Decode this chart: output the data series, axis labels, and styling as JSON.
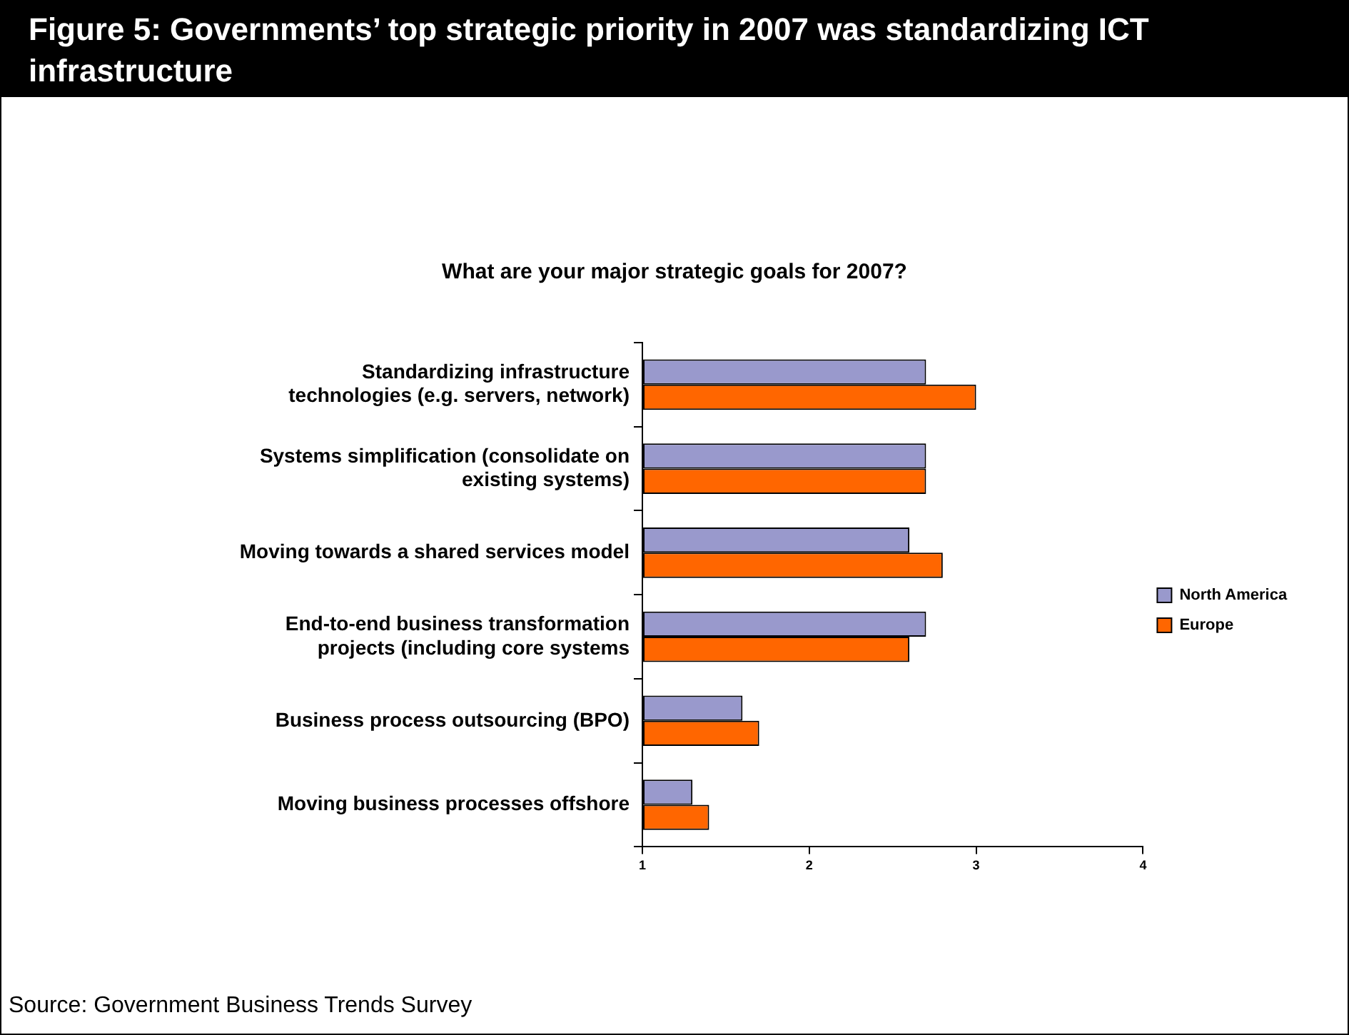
{
  "chart_data": {
    "type": "bar",
    "orientation": "horizontal",
    "title": "Figure 5: Governments’ top strategic priority in 2007 was standardizing ICT infrastructure",
    "subtitle": "What are your major strategic goals for 2007?",
    "categories": [
      "Standardizing infrastructure technologies (e.g. servers, network)",
      "Systems simplification (consolidate on existing systems)",
      "Moving towards a shared services model",
      "End-to-end business transformation projects (including core systems",
      "Business process outsourcing (BPO)",
      "Moving business processes offshore"
    ],
    "series": [
      {
        "name": "North America",
        "color": "#9999cc",
        "values": [
          2.7,
          2.7,
          2.6,
          2.7,
          1.6,
          1.3
        ]
      },
      {
        "name": "Europe",
        "color": "#ff6600",
        "values": [
          3.0,
          2.7,
          2.8,
          2.6,
          1.7,
          1.4
        ]
      }
    ],
    "xlim": [
      1,
      4
    ],
    "xticks": [
      1,
      2,
      3,
      4
    ],
    "grid": false,
    "legend": "right",
    "annotations": [
      "Source: Government Business Trends Survey"
    ]
  }
}
